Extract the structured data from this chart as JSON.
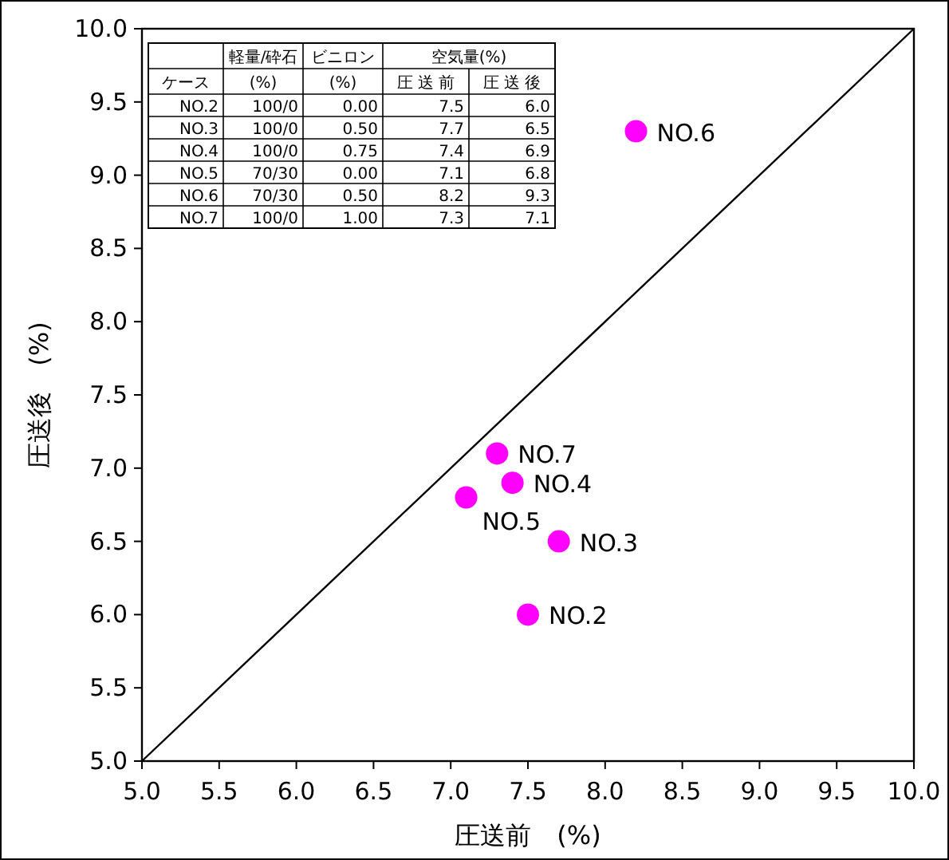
{
  "chart_data": {
    "type": "scatter",
    "xlabel": "圧送前　(%)",
    "ylabel": "圧送後　(%)",
    "xlim": [
      5,
      10
    ],
    "ylim": [
      5,
      10
    ],
    "xticks": [
      {
        "value": 5,
        "label": "5.0"
      },
      {
        "value": 5.5,
        "label": "5.5"
      },
      {
        "value": 6,
        "label": "6.0"
      },
      {
        "value": 6.5,
        "label": "6.5"
      },
      {
        "value": 7,
        "label": "7.0"
      },
      {
        "value": 7.5,
        "label": "7.5"
      },
      {
        "value": 8,
        "label": "8.0"
      },
      {
        "value": 8.5,
        "label": "8.5"
      },
      {
        "value": 9,
        "label": "9.0"
      },
      {
        "value": 9.5,
        "label": "9.5"
      },
      {
        "value": 10,
        "label": "10.0"
      }
    ],
    "yticks": [
      {
        "value": 5,
        "label": "5.0"
      },
      {
        "value": 5.5,
        "label": "5.5"
      },
      {
        "value": 6,
        "label": "6.0"
      },
      {
        "value": 6.5,
        "label": "6.5"
      },
      {
        "value": 7,
        "label": "7.0"
      },
      {
        "value": 7.5,
        "label": "7.5"
      },
      {
        "value": 8,
        "label": "8.0"
      },
      {
        "value": 8.5,
        "label": "8.5"
      },
      {
        "value": 9,
        "label": "9.0"
      },
      {
        "value": 9.5,
        "label": "9.5"
      },
      {
        "value": 10,
        "label": "10.0"
      }
    ],
    "marker": "circle",
    "grid": false,
    "series": [
      {
        "color": "#ff00ff",
        "x": [
          7.5,
          7.7,
          7.4,
          7.1,
          8.2,
          7.3
        ],
        "values": [
          6.0,
          6.5,
          6.9,
          6.8,
          9.3,
          7.1
        ]
      },
      {
        "type": "line",
        "marker": "none",
        "color": "#000000",
        "x": [
          5,
          10
        ],
        "values": [
          5,
          10
        ]
      }
    ],
    "annotations": [
      "軽量/砕石",
      "ビニロン",
      "空気量(%)",
      "ケース",
      "(%)",
      "(%)",
      "圧 送 前",
      "圧 送 後",
      "NO.2",
      "100/0",
      "0.00",
      "7.5",
      "6.0",
      "NO.3",
      "100/0",
      "0.50",
      "7.7",
      "6.5",
      "NO.4",
      "100/0",
      "0.75",
      "7.4",
      "6.9",
      "NO.5",
      "70/30",
      "0.00",
      "7.1",
      "6.8",
      "NO.6",
      "70/30",
      "0.50",
      "8.2",
      "9.3",
      "NO.7",
      "100/0",
      "1.00",
      "7.3",
      "7.1",
      {
        "text": "NO.2",
        "x": 7.5,
        "y": 6.0
      },
      {
        "text": "NO.3",
        "x": 7.7,
        "y": 6.5
      },
      {
        "text": "NO.4",
        "x": 7.4,
        "y": 6.9
      },
      {
        "text": "NO.5",
        "x": 7.1,
        "y": 6.8
      },
      {
        "text": "NO.6",
        "x": 8.2,
        "y": 9.3
      },
      {
        "text": "NO.7",
        "x": 7.3,
        "y": 7.1
      }
    ]
  }
}
